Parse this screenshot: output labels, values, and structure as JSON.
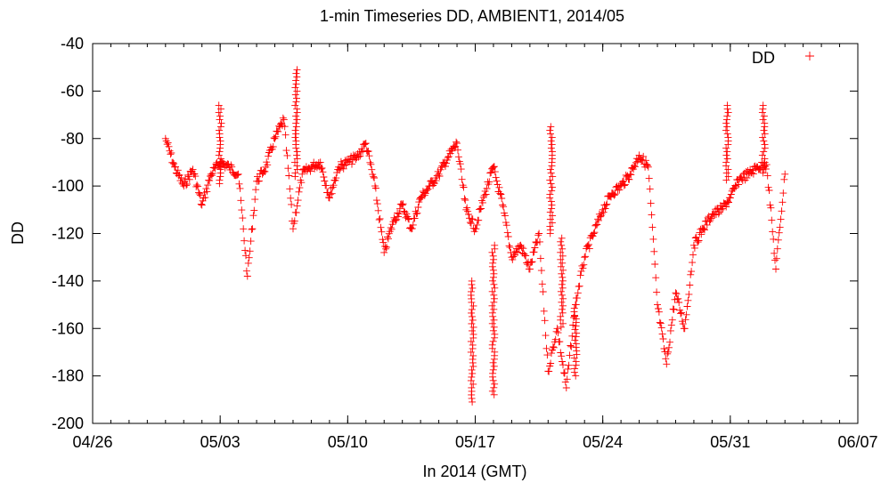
{
  "chart_data": {
    "type": "scatter",
    "title": "1-min Timeseries DD, AMBIENT1, 2014/05",
    "xlabel": "In 2014 (GMT)",
    "ylabel": "DD",
    "marker": "+",
    "color": "#ff0000",
    "grid": false,
    "legend_position": "top-right",
    "xlim": [
      "2014-04-26",
      "2014-06-07"
    ],
    "ylim": [
      -200,
      -40
    ],
    "x_ticks": [
      "04/26",
      "05/03",
      "05/10",
      "05/17",
      "05/24",
      "05/31",
      "06/07"
    ],
    "y_ticks": [
      -40,
      -60,
      -80,
      -100,
      -120,
      -140,
      -160,
      -180,
      -200
    ],
    "series": [
      {
        "name": "DD",
        "x": [
          "2014-04-30T00:00",
          "2014-04-30T12:00",
          "2014-05-01T00:00",
          "2014-05-01T12:00",
          "2014-05-02T00:00",
          "2014-05-02T12:00",
          "2014-05-03T00:00",
          "2014-05-03T12:00",
          "2014-05-04T00:00",
          "2014-05-04T12:00",
          "2014-05-05T00:00",
          "2014-05-05T12:00",
          "2014-05-06T00:00",
          "2014-05-06T12:00",
          "2014-05-07T00:00",
          "2014-05-07T12:00",
          "2014-05-08T00:00",
          "2014-05-08T12:00",
          "2014-05-09T00:00",
          "2014-05-09T12:00",
          "2014-05-10T00:00",
          "2014-05-10T12:00",
          "2014-05-11T00:00",
          "2014-05-11T12:00",
          "2014-05-12T00:00",
          "2014-05-12T12:00",
          "2014-05-13T00:00",
          "2014-05-13T12:00",
          "2014-05-14T00:00",
          "2014-05-14T12:00",
          "2014-05-15T00:00",
          "2014-05-15T12:00",
          "2014-05-16T00:00",
          "2014-05-16T12:00",
          "2014-05-17T00:00",
          "2014-05-17T12:00",
          "2014-05-18T00:00",
          "2014-05-18T12:00",
          "2014-05-19T00:00",
          "2014-05-19T12:00",
          "2014-05-20T00:00",
          "2014-05-20T12:00",
          "2014-05-21T00:00",
          "2014-05-21T12:00",
          "2014-05-22T00:00",
          "2014-05-22T12:00",
          "2014-05-23T00:00",
          "2014-05-23T12:00",
          "2014-05-24T00:00",
          "2014-05-24T12:00",
          "2014-05-25T00:00",
          "2014-05-25T12:00",
          "2014-05-26T00:00",
          "2014-05-26T12:00",
          "2014-05-27T00:00",
          "2014-05-27T12:00",
          "2014-05-28T00:00",
          "2014-05-28T12:00",
          "2014-05-29T00:00",
          "2014-05-29T12:00",
          "2014-05-30T00:00",
          "2014-05-30T12:00",
          "2014-05-31T00:00",
          "2014-05-31T12:00",
          "2014-06-01T00:00",
          "2014-06-01T12:00",
          "2014-06-02T00:00",
          "2014-06-02T12:00",
          "2014-06-03T00:00"
        ],
        "y": [
          -80,
          -92,
          -100,
          -93,
          -108,
          -95,
          -90,
          -92,
          -95,
          -138,
          -98,
          -92,
          -80,
          -72,
          -118,
          -95,
          -92,
          -90,
          -105,
          -92,
          -90,
          -88,
          -82,
          -100,
          -128,
          -115,
          -108,
          -118,
          -105,
          -100,
          -95,
          -88,
          -82,
          -110,
          -118,
          -104,
          -92,
          -108,
          -130,
          -125,
          -135,
          -120,
          -178,
          -160,
          -185,
          -150,
          -130,
          -120,
          -110,
          -103,
          -100,
          -95,
          -87,
          -92,
          -150,
          -175,
          -145,
          -160,
          -125,
          -118,
          -112,
          -110,
          -105,
          -97,
          -95,
          -92,
          -91,
          -135,
          -95
        ],
        "spikes": [
          {
            "x": "2014-05-07T04:00",
            "y_min": -96,
            "y_max": -51
          },
          {
            "x": "2014-05-03T00:00",
            "y_min": -100,
            "y_max": -66
          },
          {
            "x": "2014-05-16T20:00",
            "y_min": -192,
            "y_max": -140
          },
          {
            "x": "2014-05-18T00:00",
            "y_min": -188,
            "y_max": -125
          },
          {
            "x": "2014-05-21T04:00",
            "y_min": -120,
            "y_max": -75
          },
          {
            "x": "2014-05-21T18:00",
            "y_min": -160,
            "y_max": -122
          },
          {
            "x": "2014-05-22T12:00",
            "y_min": -180,
            "y_max": -150
          },
          {
            "x": "2014-05-30T20:00",
            "y_min": -98,
            "y_max": -66
          },
          {
            "x": "2014-06-01T20:00",
            "y_min": -95,
            "y_max": -66
          }
        ]
      }
    ]
  }
}
